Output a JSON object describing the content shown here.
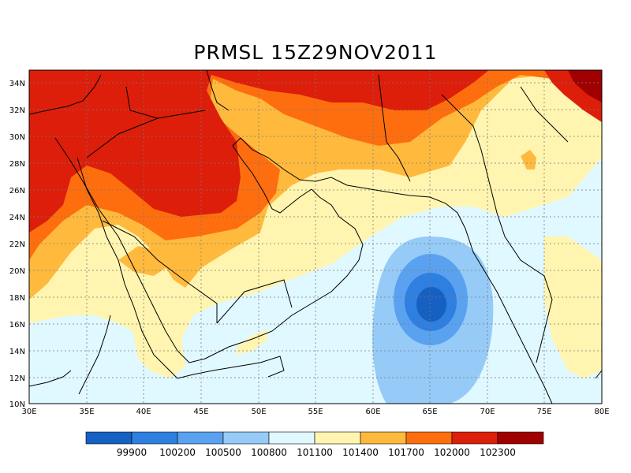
{
  "title": "PRMSL 15Z29NOV2011",
  "lon_labels": [
    "30E",
    "35E",
    "40E",
    "45E",
    "50E",
    "55E",
    "60E",
    "65E",
    "70E",
    "75E",
    "80E"
  ],
  "lat_labels": [
    "34N",
    "32N",
    "30N",
    "28N",
    "26N",
    "24N",
    "22N",
    "20N",
    "18N",
    "16N",
    "14N",
    "12N",
    "10N"
  ],
  "colorbar": {
    "colors": [
      "#1560c0",
      "#2e7fe0",
      "#5aa2f0",
      "#96cbf8",
      "#e0f8ff",
      "#fff5b0",
      "#ffba3e",
      "#ff6e0e",
      "#dc1e0a",
      "#a00000"
    ],
    "labels": [
      "99900",
      "100200",
      "100500",
      "100800",
      "101100",
      "101400",
      "101700",
      "102000",
      "102300"
    ]
  },
  "map_colors": {
    "c1": "#1560c0",
    "c2": "#2e7fe0",
    "c3": "#5aa2f0",
    "c4": "#96cbf8",
    "c5": "#e0f8ff",
    "c6": "#fff5b0",
    "c7": "#ffba3e",
    "c8": "#ff6e0e",
    "c9": "#dc1e0a",
    "c10": "#a00000"
  }
}
